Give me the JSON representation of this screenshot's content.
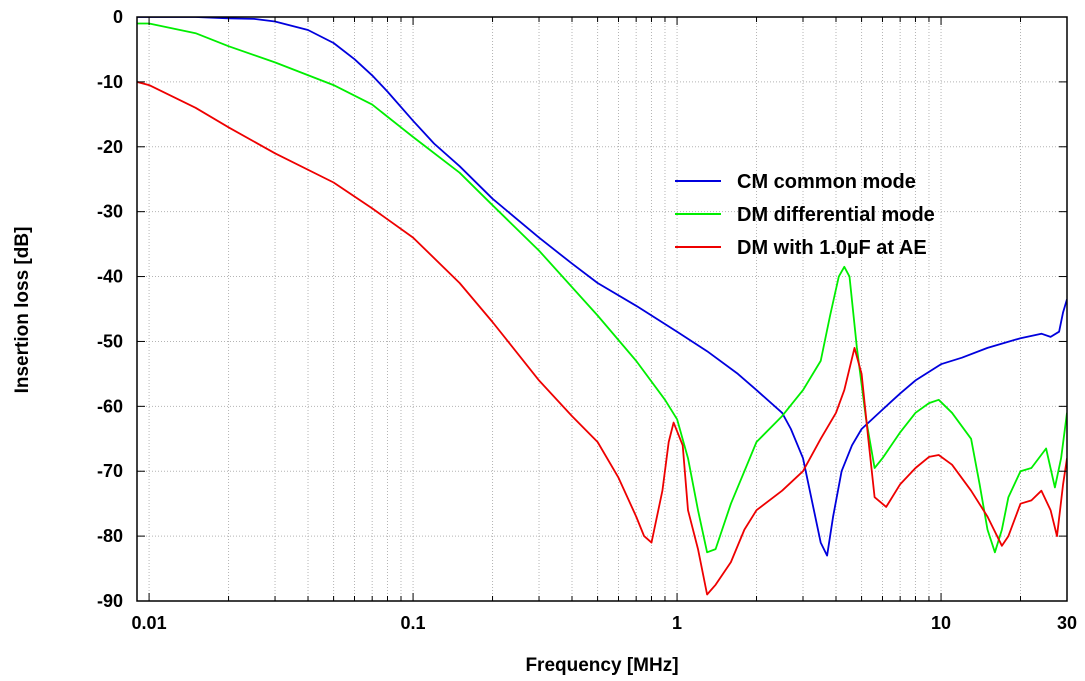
{
  "chart_data": {
    "type": "line",
    "xlabel": "Frequency [MHz]",
    "ylabel": "Insertion loss [dB]",
    "xscale": "log",
    "xlim": [
      0.009,
      30
    ],
    "ylim": [
      -90,
      0
    ],
    "xticks": [
      {
        "value": 0.01,
        "label": "0.01"
      },
      {
        "value": 0.1,
        "label": "0.1"
      },
      {
        "value": 1,
        "label": "1"
      },
      {
        "value": 10,
        "label": "10"
      },
      {
        "value": 30,
        "label": "30"
      }
    ],
    "yticks": [
      0,
      -10,
      -20,
      -30,
      -40,
      -50,
      -60,
      -70,
      -80,
      -90
    ],
    "grid": "dotted minor and major grid",
    "legend_position": "right",
    "series": [
      {
        "name": "CM common mode",
        "color": "#0000dd",
        "points": [
          [
            0.009,
            0
          ],
          [
            0.015,
            0
          ],
          [
            0.02,
            -0.2
          ],
          [
            0.025,
            -0.3
          ],
          [
            0.03,
            -0.7
          ],
          [
            0.04,
            -2
          ],
          [
            0.05,
            -4
          ],
          [
            0.06,
            -6.5
          ],
          [
            0.07,
            -9
          ],
          [
            0.08,
            -11.5
          ],
          [
            0.1,
            -16
          ],
          [
            0.12,
            -19.5
          ],
          [
            0.15,
            -23
          ],
          [
            0.2,
            -28
          ],
          [
            0.3,
            -34
          ],
          [
            0.4,
            -38
          ],
          [
            0.5,
            -41
          ],
          [
            0.7,
            -44.5
          ],
          [
            1.0,
            -48.5
          ],
          [
            1.3,
            -51.5
          ],
          [
            1.7,
            -55
          ],
          [
            2.0,
            -57.5
          ],
          [
            2.5,
            -61
          ],
          [
            2.7,
            -63.5
          ],
          [
            3.0,
            -68
          ],
          [
            3.3,
            -76
          ],
          [
            3.5,
            -81
          ],
          [
            3.7,
            -83
          ],
          [
            3.9,
            -77
          ],
          [
            4.2,
            -70
          ],
          [
            4.6,
            -66
          ],
          [
            5.0,
            -63.5
          ],
          [
            6.0,
            -60.5
          ],
          [
            7.0,
            -58
          ],
          [
            8.0,
            -56
          ],
          [
            10.0,
            -53.5
          ],
          [
            12.0,
            -52.5
          ],
          [
            15.0,
            -51
          ],
          [
            20.0,
            -49.5
          ],
          [
            24.0,
            -48.8
          ],
          [
            26.0,
            -49.3
          ],
          [
            28.0,
            -48.5
          ],
          [
            29.0,
            -45.5
          ],
          [
            30.0,
            -43.5
          ]
        ]
      },
      {
        "name": "DM differential mode",
        "color": "#00ee00",
        "points": [
          [
            0.009,
            -1
          ],
          [
            0.01,
            -1
          ],
          [
            0.015,
            -2.5
          ],
          [
            0.02,
            -4.5
          ],
          [
            0.03,
            -7
          ],
          [
            0.05,
            -10.5
          ],
          [
            0.07,
            -13.5
          ],
          [
            0.1,
            -18.5
          ],
          [
            0.15,
            -24
          ],
          [
            0.2,
            -29
          ],
          [
            0.3,
            -36
          ],
          [
            0.5,
            -46
          ],
          [
            0.7,
            -53
          ],
          [
            0.9,
            -59
          ],
          [
            1.0,
            -62
          ],
          [
            1.1,
            -68
          ],
          [
            1.2,
            -76
          ],
          [
            1.3,
            -82.5
          ],
          [
            1.4,
            -82
          ],
          [
            1.6,
            -75
          ],
          [
            1.8,
            -70
          ],
          [
            2.0,
            -65.5
          ],
          [
            2.5,
            -61.5
          ],
          [
            3.0,
            -57.5
          ],
          [
            3.5,
            -53
          ],
          [
            3.8,
            -46
          ],
          [
            4.1,
            -40
          ],
          [
            4.3,
            -38.5
          ],
          [
            4.5,
            -40
          ],
          [
            4.8,
            -51
          ],
          [
            5.2,
            -62
          ],
          [
            5.6,
            -69.5
          ],
          [
            6.0,
            -68
          ],
          [
            7.0,
            -64
          ],
          [
            8.0,
            -61
          ],
          [
            9.0,
            -59.5
          ],
          [
            9.8,
            -59
          ],
          [
            11.0,
            -61
          ],
          [
            13.0,
            -65
          ],
          [
            14.0,
            -72
          ],
          [
            15.0,
            -79
          ],
          [
            16.0,
            -82.5
          ],
          [
            17.0,
            -79
          ],
          [
            18.0,
            -74
          ],
          [
            20.0,
            -70
          ],
          [
            22.0,
            -69.5
          ],
          [
            25.0,
            -66.5
          ],
          [
            27.0,
            -72.5
          ],
          [
            28.5,
            -68
          ],
          [
            30.0,
            -61
          ]
        ]
      },
      {
        "name": "DM with 1.0µF at AE",
        "color": "#ee0000",
        "points": [
          [
            0.009,
            -10
          ],
          [
            0.01,
            -10.5
          ],
          [
            0.015,
            -14
          ],
          [
            0.02,
            -17
          ],
          [
            0.03,
            -21
          ],
          [
            0.05,
            -25.5
          ],
          [
            0.07,
            -29.5
          ],
          [
            0.1,
            -34
          ],
          [
            0.15,
            -41
          ],
          [
            0.2,
            -47
          ],
          [
            0.3,
            -56
          ],
          [
            0.4,
            -61.5
          ],
          [
            0.5,
            -65.5
          ],
          [
            0.6,
            -71
          ],
          [
            0.7,
            -77
          ],
          [
            0.75,
            -80
          ],
          [
            0.8,
            -81
          ],
          [
            0.88,
            -73
          ],
          [
            0.93,
            -65.5
          ],
          [
            0.97,
            -62.5
          ],
          [
            1.05,
            -66
          ],
          [
            1.1,
            -76
          ],
          [
            1.2,
            -82
          ],
          [
            1.3,
            -89
          ],
          [
            1.4,
            -87.5
          ],
          [
            1.6,
            -84
          ],
          [
            1.8,
            -79
          ],
          [
            2.0,
            -76
          ],
          [
            2.5,
            -73
          ],
          [
            3.0,
            -70
          ],
          [
            3.5,
            -65
          ],
          [
            4.0,
            -61
          ],
          [
            4.3,
            -57.5
          ],
          [
            4.7,
            -51
          ],
          [
            5.0,
            -55
          ],
          [
            5.3,
            -65
          ],
          [
            5.6,
            -74
          ],
          [
            6.2,
            -75.5
          ],
          [
            7.0,
            -72
          ],
          [
            8.0,
            -69.5
          ],
          [
            9.0,
            -67.8
          ],
          [
            9.8,
            -67.5
          ],
          [
            11.0,
            -69
          ],
          [
            13.0,
            -73
          ],
          [
            15.0,
            -77
          ],
          [
            17.0,
            -81.5
          ],
          [
            18.0,
            -80
          ],
          [
            20.0,
            -75
          ],
          [
            22.0,
            -74.5
          ],
          [
            24.0,
            -73
          ],
          [
            26.0,
            -76
          ],
          [
            27.5,
            -80
          ],
          [
            29.0,
            -72
          ],
          [
            30.0,
            -68
          ]
        ]
      }
    ]
  }
}
